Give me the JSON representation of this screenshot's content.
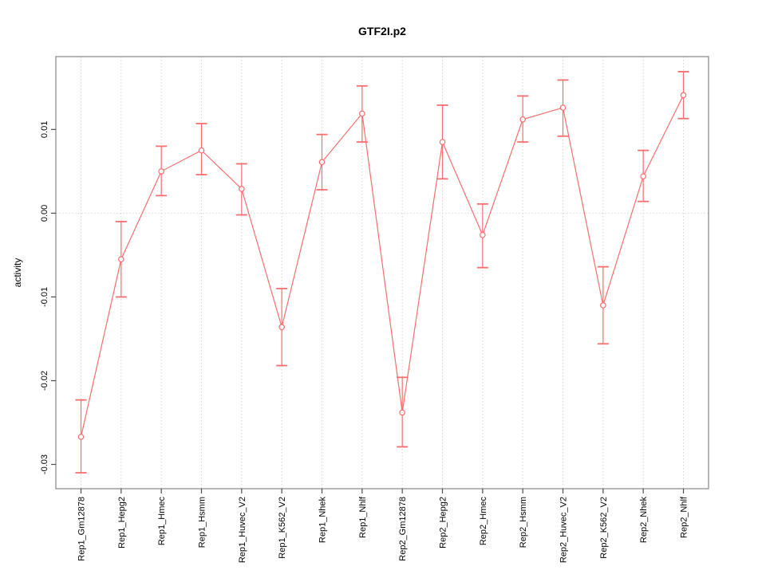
{
  "chart_data": {
    "type": "line",
    "title": "GTF2I.p2",
    "ylabel": "activity",
    "categories": [
      "Rep1_Gm12878",
      "Rep1_Hepg2",
      "Rep1_Hmec",
      "Rep1_Hsmm",
      "Rep1_Huvec_V2",
      "Rep1_K562_V2",
      "Rep1_Nhek",
      "Rep1_Nhlf",
      "Rep2_Gm12878",
      "Rep2_Hepg2",
      "Rep2_Hmec",
      "Rep2_Hsmm",
      "Rep2_Huvec_V2",
      "Rep2_K562_V2",
      "Rep2_Nhek",
      "Rep2_Nhlf"
    ],
    "series": [
      {
        "name": "activity",
        "values": [
          -0.0267,
          -0.0055,
          0.005,
          0.0075,
          0.0029,
          -0.0136,
          0.0061,
          0.0119,
          -0.0238,
          0.0085,
          -0.0026,
          0.0112,
          0.0126,
          -0.011,
          0.0044,
          0.0141
        ],
        "upper": [
          -0.0223,
          -0.001,
          0.008,
          0.0107,
          0.0059,
          -0.009,
          0.0094,
          0.0152,
          -0.0196,
          0.0129,
          0.0011,
          0.014,
          0.0159,
          -0.0064,
          0.0075,
          0.0169
        ],
        "lower": [
          -0.031,
          -0.01,
          0.0021,
          0.0046,
          -0.0002,
          -0.0182,
          0.0028,
          0.0085,
          -0.0279,
          0.0041,
          -0.0065,
          0.0085,
          0.0092,
          -0.0156,
          0.0014,
          0.0113
        ]
      }
    ],
    "ylim": [
      -0.0329,
      0.0187
    ],
    "yticks": [
      {
        "value": 0.01,
        "label": "0.01"
      },
      {
        "value": 0.0,
        "label": "0.00"
      },
      {
        "value": -0.01,
        "label": "-0.01"
      },
      {
        "value": -0.02,
        "label": "-0.02"
      },
      {
        "value": -0.03,
        "label": "-0.03"
      }
    ],
    "grid": {
      "vertical": "dotted line at every category",
      "horizontal": "dotted line at zero only"
    },
    "legend": "none",
    "point_style": "open-circle with error bars",
    "colors": {
      "series": "#f96e6e",
      "grid": "#d6d6d6",
      "box": "#8f8f8f",
      "tick": "#4d4d4d",
      "text": "#000000",
      "background": "#ffffff"
    }
  }
}
